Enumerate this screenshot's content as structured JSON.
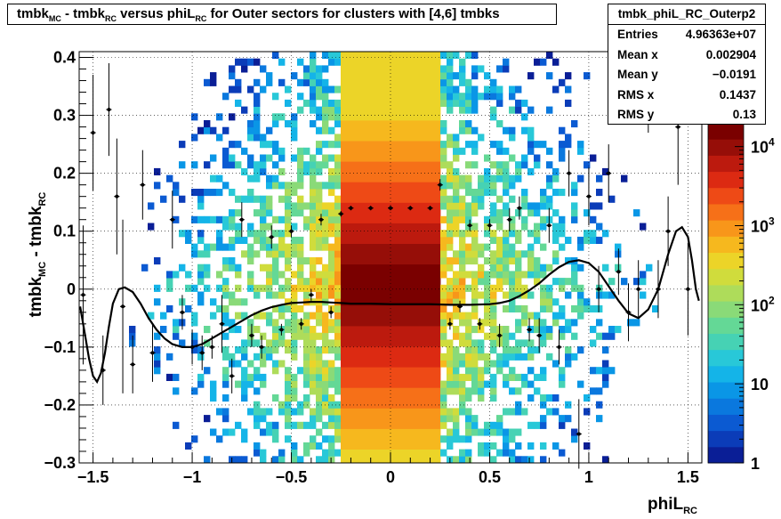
{
  "title": {
    "main_a": "tmbk",
    "sub_a": "MC",
    "main_b": " - tmbk",
    "sub_b": "RC",
    "main_c": " versus phiL",
    "sub_c": "RC",
    "main_d": " for Outer sectors for clusters with [4,6] tmbks"
  },
  "stats": {
    "name": "tmbk_phiL_RC_Outerp2",
    "rows": [
      {
        "label": "Entries",
        "value": "4.96363e+07"
      },
      {
        "label": "Mean x",
        "value": "0.002904"
      },
      {
        "label": "Mean y",
        "value": "−0.0191"
      },
      {
        "label": "RMS x",
        "value": "0.1437"
      },
      {
        "label": "RMS y",
        "value": "0.13"
      }
    ]
  },
  "chart_data": {
    "type": "heatmap",
    "title": "tmbk_MC - tmbk_RC versus phiL_RC for Outer sectors for clusters with [4,6] tmbks",
    "xlabel": "phiL_RC",
    "ylabel": "tmbk_MC - tmbk_RC",
    "xlim": [
      -1.57,
      1.57
    ],
    "ylim": [
      -0.3,
      0.41
    ],
    "x_ticks": [
      "−1.5",
      "−1",
      "−0.5",
      "0",
      "0.5",
      "1",
      "1.5"
    ],
    "x_tick_values": [
      -1.5,
      -1,
      -0.5,
      0,
      0.5,
      1,
      1.5
    ],
    "y_ticks": [
      "−0.3",
      "−0.2",
      "−0.1",
      "0",
      "0.1",
      "0.2",
      "0.3",
      "0.4"
    ],
    "y_tick_values": [
      -0.3,
      -0.2,
      -0.1,
      0,
      0.1,
      0.2,
      0.3,
      0.4
    ],
    "grid": true,
    "colorbar": {
      "scale": "log",
      "min": 1,
      "max": 10000,
      "labels": [
        "1",
        "10",
        "10",
        "10",
        "10"
      ],
      "label_exponents": [
        "",
        "",
        "2",
        "3",
        "4"
      ],
      "label_values": [
        1,
        10,
        100,
        1000,
        10000
      ]
    },
    "palette": [
      "#0a1e96",
      "#0b3cb8",
      "#0b5ad2",
      "#0a78de",
      "#0a96e6",
      "#14b4e8",
      "#28c8d8",
      "#46d2b4",
      "#64d896",
      "#8ada78",
      "#aedc5a",
      "#d0dc3c",
      "#ecd428",
      "#f6b81e",
      "#f8961a",
      "#f67018",
      "#ee4a16",
      "#dc2a12",
      "#bc1a0e",
      "#960e08",
      "#7a0000"
    ],
    "band": {
      "x_range": [
        -0.24,
        0.24
      ],
      "center_y": 0.01
    },
    "profile_points": [
      {
        "x": -1.55,
        "y": -0.01,
        "err": 0.12
      },
      {
        "x": -1.5,
        "y": 0.27,
        "err": 0.1
      },
      {
        "x": -1.45,
        "y": -0.14,
        "err": 0.06
      },
      {
        "x": -1.42,
        "y": 0.31,
        "err": 0.08
      },
      {
        "x": -1.38,
        "y": 0.16,
        "err": 0.1
      },
      {
        "x": -1.35,
        "y": -0.03,
        "err": 0.15
      },
      {
        "x": -1.3,
        "y": -0.13,
        "err": 0.05
      },
      {
        "x": -1.25,
        "y": 0.18,
        "err": 0.06
      },
      {
        "x": -1.2,
        "y": -0.11,
        "err": 0.05
      },
      {
        "x": -1.1,
        "y": 0.12,
        "err": 0.05
      },
      {
        "x": -1.05,
        "y": -0.04,
        "err": 0.03
      },
      {
        "x": -1.0,
        "y": -0.1,
        "err": 0.03
      },
      {
        "x": -0.95,
        "y": -0.11,
        "err": 0.03
      },
      {
        "x": -0.9,
        "y": -0.1,
        "err": 0.02
      },
      {
        "x": -0.85,
        "y": -0.06,
        "err": 0.05
      },
      {
        "x": -0.8,
        "y": -0.15,
        "err": 0.03
      },
      {
        "x": -0.75,
        "y": 0.12,
        "err": 0.03
      },
      {
        "x": -0.7,
        "y": -0.08,
        "err": 0.02
      },
      {
        "x": -0.65,
        "y": -0.1,
        "err": 0.02
      },
      {
        "x": -0.6,
        "y": 0.09,
        "err": 0.02
      },
      {
        "x": -0.55,
        "y": -0.07,
        "err": 0.01
      },
      {
        "x": -0.5,
        "y": 0.1,
        "err": 0.01
      },
      {
        "x": -0.45,
        "y": -0.06,
        "err": 0.01
      },
      {
        "x": -0.4,
        "y": -0.01,
        "err": 0.01
      },
      {
        "x": -0.35,
        "y": 0.12,
        "err": 0.01
      },
      {
        "x": -0.3,
        "y": -0.04,
        "err": 0.01
      },
      {
        "x": -0.25,
        "y": 0.13,
        "err": 0.005
      },
      {
        "x": -0.2,
        "y": 0.14,
        "err": 0.004
      },
      {
        "x": -0.1,
        "y": 0.14,
        "err": 0.004
      },
      {
        "x": 0.0,
        "y": 0.14,
        "err": 0.004
      },
      {
        "x": 0.1,
        "y": 0.14,
        "err": 0.004
      },
      {
        "x": 0.2,
        "y": 0.14,
        "err": 0.004
      },
      {
        "x": 0.25,
        "y": 0.18,
        "err": 0.01
      },
      {
        "x": 0.3,
        "y": -0.06,
        "err": 0.01
      },
      {
        "x": 0.35,
        "y": -0.03,
        "err": 0.01
      },
      {
        "x": 0.4,
        "y": 0.11,
        "err": 0.01
      },
      {
        "x": 0.45,
        "y": -0.06,
        "err": 0.01
      },
      {
        "x": 0.5,
        "y": 0.11,
        "err": 0.01
      },
      {
        "x": 0.55,
        "y": -0.08,
        "err": 0.02
      },
      {
        "x": 0.6,
        "y": 0.12,
        "err": 0.02
      },
      {
        "x": 0.65,
        "y": 0.14,
        "err": 0.02
      },
      {
        "x": 0.7,
        "y": -0.07,
        "err": 0.02
      },
      {
        "x": 0.75,
        "y": -0.08,
        "err": 0.03
      },
      {
        "x": 0.8,
        "y": 0.11,
        "err": 0.03
      },
      {
        "x": 0.85,
        "y": -0.1,
        "err": 0.03
      },
      {
        "x": 0.9,
        "y": 0.2,
        "err": 0.04
      },
      {
        "x": 0.95,
        "y": -0.25,
        "err": 0.06
      },
      {
        "x": 1.0,
        "y": 0.16,
        "err": 0.05
      },
      {
        "x": 1.05,
        "y": 0.0,
        "err": 0.04
      },
      {
        "x": 1.1,
        "y": 0.2,
        "err": 0.05
      },
      {
        "x": 1.15,
        "y": 0.03,
        "err": 0.04
      },
      {
        "x": 1.2,
        "y": -0.04,
        "err": 0.05
      },
      {
        "x": 1.25,
        "y": 0.0,
        "err": 0.05
      },
      {
        "x": 1.3,
        "y": 0.35,
        "err": 0.08
      },
      {
        "x": 1.35,
        "y": 0.0,
        "err": 0.05
      },
      {
        "x": 1.4,
        "y": 0.1,
        "err": 0.06
      },
      {
        "x": 1.45,
        "y": 0.28,
        "err": 0.1
      },
      {
        "x": 1.5,
        "y": 0.0,
        "err": 0.08
      }
    ],
    "fit_curve": {
      "x": [
        -1.565,
        -1.54,
        -1.52,
        -1.5,
        -1.48,
        -1.46,
        -1.44,
        -1.42,
        -1.4,
        -1.37,
        -1.34,
        -1.3,
        -1.26,
        -1.22,
        -1.18,
        -1.14,
        -1.1,
        -1.05,
        -1.0,
        -0.95,
        -0.9,
        -0.85,
        -0.8,
        -0.75,
        -0.7,
        -0.65,
        -0.6,
        -0.55,
        -0.5,
        -0.45,
        -0.4,
        -0.35,
        -0.3,
        -0.25,
        -0.2,
        -0.1,
        0.0,
        0.1,
        0.2,
        0.3,
        0.4,
        0.5,
        0.55,
        0.6,
        0.65,
        0.7,
        0.75,
        0.8,
        0.85,
        0.9,
        0.95,
        1.0,
        1.05,
        1.1,
        1.15,
        1.2,
        1.25,
        1.3,
        1.35,
        1.4,
        1.44,
        1.47,
        1.5,
        1.52,
        1.54,
        1.555
      ],
      "y": [
        -0.03,
        -0.08,
        -0.12,
        -0.15,
        -0.16,
        -0.145,
        -0.11,
        -0.065,
        -0.025,
        0.0,
        0.003,
        -0.005,
        -0.025,
        -0.05,
        -0.07,
        -0.085,
        -0.095,
        -0.1,
        -0.1,
        -0.095,
        -0.085,
        -0.075,
        -0.065,
        -0.055,
        -0.045,
        -0.037,
        -0.031,
        -0.027,
        -0.024,
        -0.023,
        -0.022,
        -0.022,
        -0.023,
        -0.024,
        -0.025,
        -0.025,
        -0.026,
        -0.026,
        -0.026,
        -0.027,
        -0.027,
        -0.026,
        -0.024,
        -0.02,
        -0.012,
        -0.002,
        0.01,
        0.025,
        0.038,
        0.047,
        0.05,
        0.045,
        0.03,
        0.005,
        -0.02,
        -0.042,
        -0.05,
        -0.035,
        0.0,
        0.06,
        0.1,
        0.107,
        0.09,
        0.05,
        0.0,
        -0.02
      ]
    }
  }
}
